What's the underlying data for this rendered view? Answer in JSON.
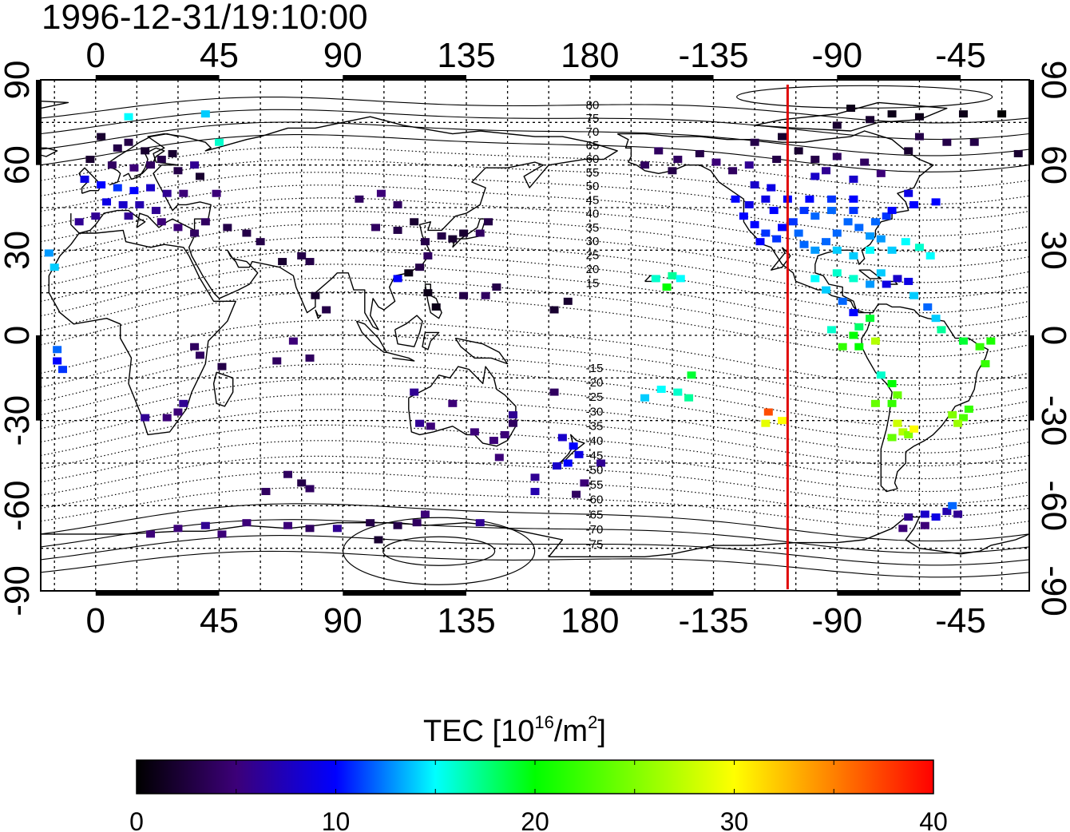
{
  "title": "1996-12-31/19:10:00",
  "map": {
    "lon_min": -20,
    "lon_max": 340,
    "lat_min": -90,
    "lat_max": 90,
    "grid_step_lon": 15,
    "grid_step_lat": 15,
    "x_tick_lons": [
      0,
      45,
      90,
      135,
      180,
      225,
      270,
      315
    ],
    "x_tick_labels": [
      "0",
      "45",
      "90",
      "135",
      "180",
      "-135",
      "-90",
      "-45"
    ],
    "y_tick_lats": [
      90,
      60,
      30,
      0,
      -30,
      -60,
      -90
    ],
    "y_tick_labels": [
      "90",
      "60",
      "30",
      "0",
      "-30",
      "-60",
      "-90"
    ],
    "subsolar_meridian_lon": 252,
    "subsolar_color": "#e00000"
  },
  "magnetic_latitude_labels": [
    "80",
    "75",
    "70",
    "65",
    "60",
    "55",
    "50",
    "45",
    "40",
    "35",
    "30",
    "25",
    "20",
    "15",
    "-15",
    "-20",
    "-25",
    "-30",
    "-35",
    "-40",
    "-45",
    "-50",
    "-55",
    "-60",
    "-65",
    "-70",
    "-75"
  ],
  "tec_points": [
    {
      "lon": 2,
      "lat": 70,
      "v": 2
    },
    {
      "lon": 8,
      "lat": 66,
      "v": 3
    },
    {
      "lon": 12,
      "lat": 68,
      "v": 3
    },
    {
      "lon": 18,
      "lat": 65,
      "v": 2
    },
    {
      "lon": 24,
      "lat": 62,
      "v": 3
    },
    {
      "lon": 28,
      "lat": 64,
      "v": 2
    },
    {
      "lon": 6,
      "lat": 60,
      "v": 4
    },
    {
      "lon": 14,
      "lat": 59,
      "v": 5
    },
    {
      "lon": 20,
      "lat": 60,
      "v": 4
    },
    {
      "lon": 30,
      "lat": 58,
      "v": 3
    },
    {
      "lon": -4,
      "lat": 55,
      "v": 9
    },
    {
      "lon": 2,
      "lat": 53,
      "v": 10
    },
    {
      "lon": 8,
      "lat": 52,
      "v": 11
    },
    {
      "lon": 14,
      "lat": 51,
      "v": 10
    },
    {
      "lon": 20,
      "lat": 52,
      "v": 8
    },
    {
      "lon": 26,
      "lat": 50,
      "v": 6
    },
    {
      "lon": 32,
      "lat": 50,
      "v": 5
    },
    {
      "lon": 4,
      "lat": 47,
      "v": 9
    },
    {
      "lon": 10,
      "lat": 46,
      "v": 8
    },
    {
      "lon": 16,
      "lat": 46,
      "v": 7
    },
    {
      "lon": 22,
      "lat": 44,
      "v": 6
    },
    {
      "lon": 0,
      "lat": 42,
      "v": 6
    },
    {
      "lon": 12,
      "lat": 42,
      "v": 6
    },
    {
      "lon": 24,
      "lat": 40,
      "v": 5
    },
    {
      "lon": 30,
      "lat": 38,
      "v": 5
    },
    {
      "lon": -6,
      "lat": 40,
      "v": 6
    },
    {
      "lon": 36,
      "lat": 36,
      "v": 4
    },
    {
      "lon": 40,
      "lat": 40,
      "v": 4
    },
    {
      "lon": 44,
      "lat": 50,
      "v": 5
    },
    {
      "lon": -2,
      "lat": 62,
      "v": 2
    },
    {
      "lon": 38,
      "lat": 56,
      "v": 2
    },
    {
      "lon": 36,
      "lat": 60,
      "v": 6
    },
    {
      "lon": 12,
      "lat": 77,
      "v": 15
    },
    {
      "lon": 40,
      "lat": 78,
      "v": 14
    },
    {
      "lon": 45,
      "lat": 68,
      "v": 16
    },
    {
      "lon": -17,
      "lat": 29,
      "v": 13
    },
    {
      "lon": -15,
      "lat": 24,
      "v": 14
    },
    {
      "lon": -14,
      "lat": -5,
      "v": 12
    },
    {
      "lon": -14,
      "lat": -9,
      "v": 10
    },
    {
      "lon": -12,
      "lat": -12,
      "v": 11
    },
    {
      "lon": 18,
      "lat": -29,
      "v": 6
    },
    {
      "lon": 26,
      "lat": -29,
      "v": 5
    },
    {
      "lon": 30,
      "lat": -27,
      "v": 5
    },
    {
      "lon": 32,
      "lat": -24,
      "v": 6
    },
    {
      "lon": 36,
      "lat": -4,
      "v": 4
    },
    {
      "lon": 38,
      "lat": -7,
      "v": 4
    },
    {
      "lon": 46,
      "lat": -11,
      "v": 3
    },
    {
      "lon": 48,
      "lat": 38,
      "v": 3
    },
    {
      "lon": 55,
      "lat": 36,
      "v": 3
    },
    {
      "lon": 60,
      "lat": 33,
      "v": 3
    },
    {
      "lon": 68,
      "lat": 26,
      "v": 2
    },
    {
      "lon": 75,
      "lat": 28,
      "v": 3
    },
    {
      "lon": 78,
      "lat": 26,
      "v": 3
    },
    {
      "lon": 80,
      "lat": 14,
      "v": 2
    },
    {
      "lon": 84,
      "lat": 9,
      "v": 3
    },
    {
      "lon": 72,
      "lat": -2,
      "v": 5
    },
    {
      "lon": 78,
      "lat": -8,
      "v": 4
    },
    {
      "lon": 66,
      "lat": -9,
      "v": 4
    },
    {
      "lon": 96,
      "lat": 48,
      "v": 4
    },
    {
      "lon": 104,
      "lat": 50,
      "v": 5
    },
    {
      "lon": 110,
      "lat": 46,
      "v": 4
    },
    {
      "lon": 102,
      "lat": 38,
      "v": 4
    },
    {
      "lon": 110,
      "lat": 37,
      "v": 3
    },
    {
      "lon": 116,
      "lat": 40,
      "v": 2
    },
    {
      "lon": 120,
      "lat": 33,
      "v": 3
    },
    {
      "lon": 118,
      "lat": 24,
      "v": 3
    },
    {
      "lon": 121,
      "lat": 28,
      "v": 4
    },
    {
      "lon": 126,
      "lat": 35,
      "v": 3
    },
    {
      "lon": 130,
      "lat": 34,
      "v": 2
    },
    {
      "lon": 134,
      "lat": 36,
      "v": 2
    },
    {
      "lon": 140,
      "lat": 36,
      "v": 4
    },
    {
      "lon": 143,
      "lat": 40,
      "v": 3
    },
    {
      "lon": 121,
      "lat": 15,
      "v": 1
    },
    {
      "lon": 124,
      "lat": 10,
      "v": 1
    },
    {
      "lon": 114,
      "lat": 22,
      "v": 1
    },
    {
      "lon": 134,
      "lat": 14,
      "v": 3
    },
    {
      "lon": 142,
      "lat": 14,
      "v": 4
    },
    {
      "lon": 146,
      "lat": 17,
      "v": 3
    },
    {
      "lon": 167,
      "lat": 9,
      "v": 2
    },
    {
      "lon": 172,
      "lat": 12,
      "v": 2
    },
    {
      "lon": 110,
      "lat": 20,
      "v": 10
    },
    {
      "lon": 116,
      "lat": -20,
      "v": 6
    },
    {
      "lon": 118,
      "lat": -31,
      "v": 6
    },
    {
      "lon": 122,
      "lat": -32,
      "v": 5
    },
    {
      "lon": 130,
      "lat": -24,
      "v": 5
    },
    {
      "lon": 138,
      "lat": -34,
      "v": 5
    },
    {
      "lon": 145,
      "lat": -37,
      "v": 5
    },
    {
      "lon": 149,
      "lat": -35,
      "v": 5
    },
    {
      "lon": 152,
      "lat": -28,
      "v": 6
    },
    {
      "lon": 147,
      "lat": -43,
      "v": 5
    },
    {
      "lon": 152,
      "lat": -31,
      "v": 4
    },
    {
      "lon": 167,
      "lat": -20,
      "v": 4
    },
    {
      "lon": 170,
      "lat": -36,
      "v": 8
    },
    {
      "lon": 174,
      "lat": -39,
      "v": 10
    },
    {
      "lon": 176,
      "lat": -42,
      "v": 9
    },
    {
      "lon": 172,
      "lat": -45,
      "v": 10
    },
    {
      "lon": 168,
      "lat": -46,
      "v": 8
    },
    {
      "lon": 160,
      "lat": -50,
      "v": 6
    },
    {
      "lon": 175,
      "lat": -56,
      "v": 4
    },
    {
      "lon": 178,
      "lat": -52,
      "v": 5
    },
    {
      "lon": 184,
      "lat": -45,
      "v": 6
    },
    {
      "lon": 160,
      "lat": -55,
      "v": 7
    },
    {
      "lon": 20,
      "lat": -70,
      "v": 5
    },
    {
      "lon": 30,
      "lat": -68,
      "v": 5
    },
    {
      "lon": 40,
      "lat": -67,
      "v": 6
    },
    {
      "lon": 55,
      "lat": -66,
      "v": 5
    },
    {
      "lon": 70,
      "lat": -67,
      "v": 5
    },
    {
      "lon": 78,
      "lat": -68,
      "v": 4
    },
    {
      "lon": 88,
      "lat": -68,
      "v": 6
    },
    {
      "lon": 100,
      "lat": -66,
      "v": 3
    },
    {
      "lon": 110,
      "lat": -67,
      "v": 3
    },
    {
      "lon": 117,
      "lat": -66,
      "v": 4
    },
    {
      "lon": 140,
      "lat": -66,
      "v": 6
    },
    {
      "lon": 62,
      "lat": -55,
      "v": 4
    },
    {
      "lon": 70,
      "lat": -49,
      "v": 4
    },
    {
      "lon": 75,
      "lat": -52,
      "v": 3
    },
    {
      "lon": 78,
      "lat": -54,
      "v": 4
    },
    {
      "lon": 120,
      "lat": -63,
      "v": 5
    },
    {
      "lon": 103,
      "lat": -72,
      "v": 2
    },
    {
      "lon": 46,
      "lat": -70,
      "v": 5
    },
    {
      "lon": 210,
      "lat": 21,
      "v": 17
    },
    {
      "lon": 204,
      "lat": 20,
      "v": 16
    },
    {
      "lon": 208,
      "lat": 17,
      "v": 20
    },
    {
      "lon": 213,
      "lat": 20,
      "v": 15
    },
    {
      "lon": 206,
      "lat": -19,
      "v": 15
    },
    {
      "lon": 212,
      "lat": -20,
      "v": 16
    },
    {
      "lon": 216,
      "lat": -22,
      "v": 17
    },
    {
      "lon": 200,
      "lat": -22,
      "v": 14
    },
    {
      "lon": 217,
      "lat": -14,
      "v": 19
    },
    {
      "lon": 245,
      "lat": -27,
      "v": 37
    },
    {
      "lon": 244,
      "lat": -31,
      "v": 29
    },
    {
      "lon": 250,
      "lat": -30,
      "v": 30
    },
    {
      "lon": 205,
      "lat": 65,
      "v": 4
    },
    {
      "lon": 212,
      "lat": 62,
      "v": 4
    },
    {
      "lon": 220,
      "lat": 64,
      "v": 3
    },
    {
      "lon": 226,
      "lat": 61,
      "v": 5
    },
    {
      "lon": 232,
      "lat": 58,
      "v": 4
    },
    {
      "lon": 238,
      "lat": 60,
      "v": 6
    },
    {
      "lon": 210,
      "lat": 58,
      "v": 3
    },
    {
      "lon": 200,
      "lat": 60,
      "v": 4
    },
    {
      "lon": 248,
      "lat": 62,
      "v": 3
    },
    {
      "lon": 256,
      "lat": 65,
      "v": 2
    },
    {
      "lon": 262,
      "lat": 62,
      "v": 3
    },
    {
      "lon": 270,
      "lat": 63,
      "v": 4
    },
    {
      "lon": 280,
      "lat": 61,
      "v": 4
    },
    {
      "lon": 276,
      "lat": 55,
      "v": 8
    },
    {
      "lon": 262,
      "lat": 56,
      "v": 8
    },
    {
      "lon": 266,
      "lat": 58,
      "v": 6
    },
    {
      "lon": 286,
      "lat": 57,
      "v": 5
    },
    {
      "lon": 296,
      "lat": 65,
      "v": 2
    },
    {
      "lon": 300,
      "lat": 70,
      "v": 3
    },
    {
      "lon": 310,
      "lat": 68,
      "v": 3
    },
    {
      "lon": 270,
      "lat": 74,
      "v": 2
    },
    {
      "lon": 275,
      "lat": 80,
      "v": 1
    },
    {
      "lon": 282,
      "lat": 76,
      "v": 2
    },
    {
      "lon": 290,
      "lat": 78,
      "v": 1
    },
    {
      "lon": 300,
      "lat": 77,
      "v": 1
    },
    {
      "lon": 316,
      "lat": 78,
      "v": 1
    },
    {
      "lon": 330,
      "lat": 78,
      "v": 0
    },
    {
      "lon": 320,
      "lat": 68,
      "v": 3
    },
    {
      "lon": 336,
      "lat": 64,
      "v": 2
    },
    {
      "lon": 250,
      "lat": 70,
      "v": 2
    },
    {
      "lon": 240,
      "lat": 68,
      "v": 3
    },
    {
      "lon": 233,
      "lat": 48,
      "v": 10
    },
    {
      "lon": 238,
      "lat": 46,
      "v": 9
    },
    {
      "lon": 236,
      "lat": 42,
      "v": 10
    },
    {
      "lon": 240,
      "lat": 39,
      "v": 10
    },
    {
      "lon": 244,
      "lat": 36,
      "v": 11
    },
    {
      "lon": 242,
      "lat": 33,
      "v": 10
    },
    {
      "lon": 248,
      "lat": 34,
      "v": 11
    },
    {
      "lon": 250,
      "lat": 38,
      "v": 10
    },
    {
      "lon": 254,
      "lat": 40,
      "v": 11
    },
    {
      "lon": 247,
      "lat": 44,
      "v": 10
    },
    {
      "lon": 256,
      "lat": 36,
      "v": 12
    },
    {
      "lon": 258,
      "lat": 32,
      "v": 12
    },
    {
      "lon": 262,
      "lat": 30,
      "v": 13
    },
    {
      "lon": 266,
      "lat": 33,
      "v": 12
    },
    {
      "lon": 270,
      "lat": 36,
      "v": 12
    },
    {
      "lon": 274,
      "lat": 40,
      "v": 12
    },
    {
      "lon": 278,
      "lat": 38,
      "v": 12
    },
    {
      "lon": 282,
      "lat": 35,
      "v": 13
    },
    {
      "lon": 284,
      "lat": 40,
      "v": 12
    },
    {
      "lon": 288,
      "lat": 42,
      "v": 11
    },
    {
      "lon": 290,
      "lat": 44,
      "v": 10
    },
    {
      "lon": 276,
      "lat": 44,
      "v": 11
    },
    {
      "lon": 268,
      "lat": 44,
      "v": 12
    },
    {
      "lon": 262,
      "lat": 42,
      "v": 12
    },
    {
      "lon": 258,
      "lat": 44,
      "v": 11
    },
    {
      "lon": 260,
      "lat": 48,
      "v": 10
    },
    {
      "lon": 268,
      "lat": 48,
      "v": 11
    },
    {
      "lon": 276,
      "lat": 48,
      "v": 10
    },
    {
      "lon": 244,
      "lat": 48,
      "v": 9
    },
    {
      "lon": 252,
      "lat": 48,
      "v": 10
    },
    {
      "lon": 246,
      "lat": 52,
      "v": 9
    },
    {
      "lon": 240,
      "lat": 53,
      "v": 8
    },
    {
      "lon": 270,
      "lat": 30,
      "v": 14
    },
    {
      "lon": 276,
      "lat": 28,
      "v": 14
    },
    {
      "lon": 282,
      "lat": 30,
      "v": 15
    },
    {
      "lon": 286,
      "lat": 34,
      "v": 13
    },
    {
      "lon": 290,
      "lat": 30,
      "v": 14
    },
    {
      "lon": 295,
      "lat": 33,
      "v": 15
    },
    {
      "lon": 300,
      "lat": 31,
      "v": 16
    },
    {
      "lon": 304,
      "lat": 28,
      "v": 15
    },
    {
      "lon": 298,
      "lat": 46,
      "v": 10
    },
    {
      "lon": 306,
      "lat": 47,
      "v": 10
    },
    {
      "lon": 296,
      "lat": 50,
      "v": 9
    },
    {
      "lon": 262,
      "lat": 20,
      "v": 15
    },
    {
      "lon": 266,
      "lat": 16,
      "v": 14
    },
    {
      "lon": 270,
      "lat": 22,
      "v": 16
    },
    {
      "lon": 276,
      "lat": 20,
      "v": 16
    },
    {
      "lon": 282,
      "lat": 18,
      "v": 13
    },
    {
      "lon": 286,
      "lat": 22,
      "v": 14
    },
    {
      "lon": 288,
      "lat": 18,
      "v": 9
    },
    {
      "lon": 292,
      "lat": 20,
      "v": 8
    },
    {
      "lon": 296,
      "lat": 19,
      "v": 9
    },
    {
      "lon": 298,
      "lat": 14,
      "v": 14
    },
    {
      "lon": 272,
      "lat": 12,
      "v": 12
    },
    {
      "lon": 276,
      "lat": 8,
      "v": 10
    },
    {
      "lon": 282,
      "lat": 6,
      "v": 19
    },
    {
      "lon": 278,
      "lat": 3,
      "v": 18
    },
    {
      "lon": 276,
      "lat": 0,
      "v": 20
    },
    {
      "lon": 272,
      "lat": -4,
      "v": 22
    },
    {
      "lon": 278,
      "lat": -4,
      "v": 20
    },
    {
      "lon": 284,
      "lat": -2,
      "v": 27
    },
    {
      "lon": 268,
      "lat": 2,
      "v": 16
    },
    {
      "lon": 303,
      "lat": 10,
      "v": 12
    },
    {
      "lon": 306,
      "lat": 6,
      "v": 14
    },
    {
      "lon": 308,
      "lat": 2,
      "v": 17
    },
    {
      "lon": 316,
      "lat": -2,
      "v": 19
    },
    {
      "lon": 322,
      "lat": -4,
      "v": 22
    },
    {
      "lon": 326,
      "lat": -2,
      "v": 21
    },
    {
      "lon": 324,
      "lat": -10,
      "v": 22
    },
    {
      "lon": 286,
      "lat": -14,
      "v": 16
    },
    {
      "lon": 290,
      "lat": -17,
      "v": 20
    },
    {
      "lon": 292,
      "lat": -21,
      "v": 24
    },
    {
      "lon": 290,
      "lat": -24,
      "v": 22
    },
    {
      "lon": 284,
      "lat": -24,
      "v": 24
    },
    {
      "lon": 292,
      "lat": -31,
      "v": 28
    },
    {
      "lon": 294,
      "lat": -34,
      "v": 27
    },
    {
      "lon": 296,
      "lat": -35,
      "v": 25
    },
    {
      "lon": 290,
      "lat": -36,
      "v": 24
    },
    {
      "lon": 298,
      "lat": -33,
      "v": 30
    },
    {
      "lon": 312,
      "lat": -28,
      "v": 25
    },
    {
      "lon": 316,
      "lat": -29,
      "v": 23
    },
    {
      "lon": 318,
      "lat": -26,
      "v": 22
    },
    {
      "lon": 314,
      "lat": -31,
      "v": 26
    },
    {
      "lon": 296,
      "lat": -64,
      "v": 6
    },
    {
      "lon": 302,
      "lat": -63,
      "v": 8
    },
    {
      "lon": 310,
      "lat": -62,
      "v": 7
    },
    {
      "lon": 314,
      "lat": -63,
      "v": 6
    },
    {
      "lon": 302,
      "lat": -67,
      "v": 5
    },
    {
      "lon": 294,
      "lat": -68,
      "v": 5
    },
    {
      "lon": 312,
      "lat": -60,
      "v": 12
    },
    {
      "lon": 306,
      "lat": -64,
      "v": 9
    }
  ],
  "colorbar": {
    "title": "TEC  [10",
    "title_sup": "16",
    "title_mid": "/m",
    "title_sup2": "2",
    "title_end": "]",
    "min": 0,
    "max": 40,
    "tick_values": [
      0,
      10,
      20,
      30,
      40
    ],
    "tick_labels": [
      "0",
      "10",
      "20",
      "30",
      "40"
    ],
    "stops": [
      {
        "v": 0,
        "color": "#000000"
      },
      {
        "v": 5,
        "color": "#3c0078"
      },
      {
        "v": 10,
        "color": "#0000ff"
      },
      {
        "v": 15,
        "color": "#00ffff"
      },
      {
        "v": 20,
        "color": "#00ff00"
      },
      {
        "v": 30,
        "color": "#ffff00"
      },
      {
        "v": 35,
        "color": "#ff8000"
      },
      {
        "v": 40,
        "color": "#ff0000"
      }
    ]
  }
}
